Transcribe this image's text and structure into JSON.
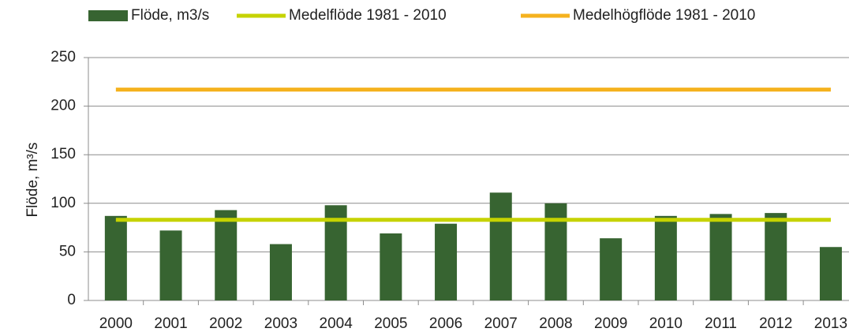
{
  "chart_data": {
    "type": "bar",
    "y_label": "Flöde, m³/s",
    "categories": [
      "2000",
      "2001",
      "2002",
      "2003",
      "2004",
      "2005",
      "2006",
      "2007",
      "2008",
      "2009",
      "2010",
      "2011",
      "2012",
      "2013"
    ],
    "series": [
      {
        "name": "Flöde, m3/s",
        "type": "bar",
        "color": "#376431",
        "values": [
          87,
          72,
          93,
          58,
          98,
          69,
          79,
          111,
          100,
          64,
          87,
          89,
          90,
          55
        ]
      },
      {
        "name": "Medelflöde 1981 - 2010",
        "type": "line",
        "color": "#c6d300",
        "values": [
          83,
          83,
          83,
          83,
          83,
          83,
          83,
          83,
          83,
          83,
          83,
          83,
          83,
          83
        ]
      },
      {
        "name": "Medelhögflöde 1981 - 2010",
        "type": "line",
        "color": "#f5b21e",
        "values": [
          217,
          217,
          217,
          217,
          217,
          217,
          217,
          217,
          217,
          217,
          217,
          217,
          217,
          217
        ]
      }
    ],
    "ylim": [
      0,
      250
    ],
    "yticks": [
      0,
      50,
      100,
      150,
      200,
      250
    ],
    "grid": true,
    "legend": "top"
  }
}
